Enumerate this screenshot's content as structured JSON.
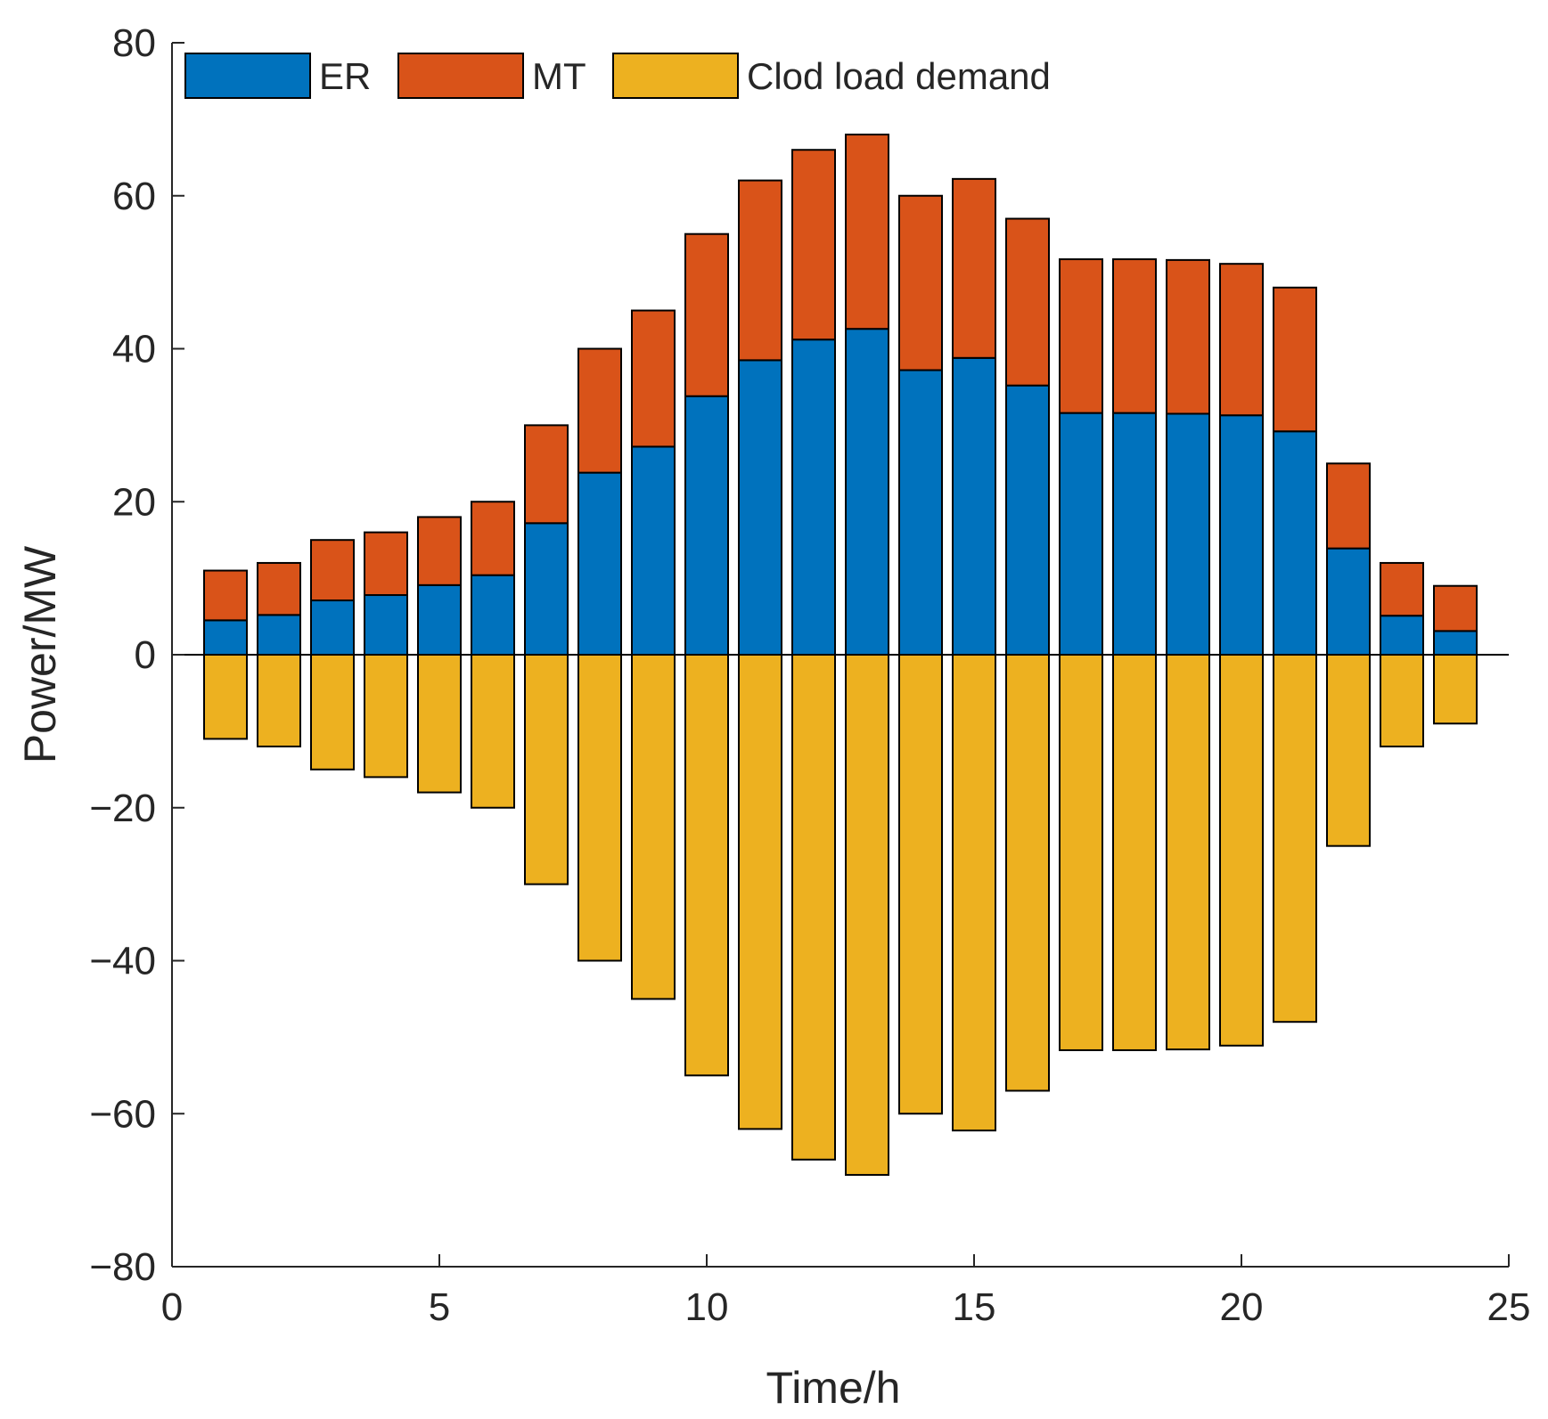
{
  "chart_data": {
    "type": "bar",
    "subtype": "stacked-diverging",
    "title": "",
    "xlabel": "Time/h",
    "ylabel": "Power/MW",
    "xlim": [
      0,
      25
    ],
    "ylim": [
      -80,
      80
    ],
    "xticks": [
      0,
      5,
      10,
      15,
      20,
      25
    ],
    "yticks": [
      -80,
      -60,
      -40,
      -20,
      0,
      20,
      40,
      60,
      80
    ],
    "ytick_labels": [
      "−80",
      "−60",
      "−40",
      "−20",
      "0",
      "20",
      "40",
      "60",
      "80"
    ],
    "grid": false,
    "legend_position": "top-left",
    "legend_orientation": "horizontal",
    "x": [
      1,
      2,
      3,
      4,
      5,
      6,
      7,
      8,
      9,
      10,
      11,
      12,
      13,
      14,
      15,
      16,
      17,
      18,
      19,
      20,
      21,
      22,
      23,
      24
    ],
    "series": [
      {
        "name": "ER",
        "color": "#0072BD",
        "stack": "positive",
        "values": [
          4.5,
          5.2,
          7.1,
          7.8,
          9.1,
          10.4,
          17.2,
          23.8,
          27.2,
          33.8,
          38.5,
          41.2,
          42.6,
          37.2,
          38.8,
          35.2,
          31.6,
          31.6,
          31.5,
          31.3,
          29.2,
          13.9,
          5.1,
          3.1
        ]
      },
      {
        "name": "MT",
        "color": "#D95319",
        "stack": "positive",
        "values": [
          6.5,
          6.8,
          7.9,
          8.2,
          8.9,
          9.6,
          12.8,
          16.2,
          17.8,
          21.2,
          23.5,
          24.8,
          25.4,
          22.8,
          23.4,
          21.8,
          20.1,
          20.1,
          20.1,
          19.8,
          18.8,
          11.1,
          6.9,
          5.9
        ]
      },
      {
        "name": "Clod load demand",
        "color": "#EDB120",
        "stack": "negative",
        "values": [
          -11,
          -12,
          -15,
          -16,
          -18,
          -20,
          -30,
          -40,
          -45,
          -55,
          -62,
          -66,
          -68,
          -60,
          -62.2,
          -57,
          -51.7,
          -51.7,
          -51.6,
          -51.1,
          -48,
          -25,
          -12,
          -9
        ]
      }
    ]
  }
}
